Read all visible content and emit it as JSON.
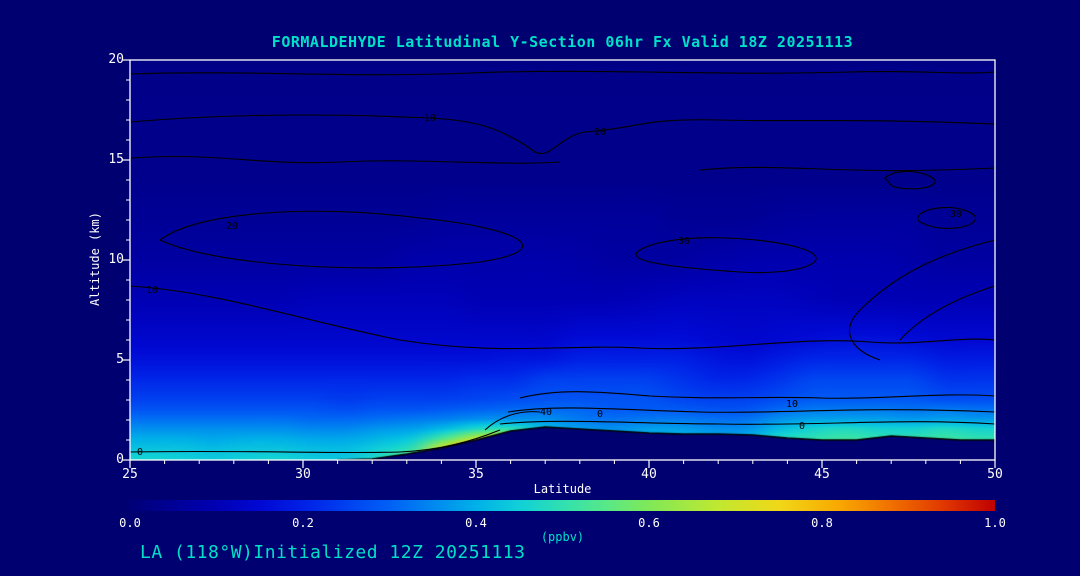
{
  "page": {
    "background": "#000070",
    "title": "FORMALDEHYDE Latitudinal Y-Section 06hr  Fx Valid 18Z 20251113",
    "accent_color": "#00e0c8",
    "footer": "LA (118°W)Initialized 12Z 20251113"
  },
  "plot": {
    "xlabel": "Latitude",
    "ylabel": "Altitude (km)",
    "x_ticks": [
      "25",
      "30",
      "35",
      "40",
      "45",
      "50"
    ],
    "y_ticks": [
      "0",
      "5",
      "10",
      "15",
      "20"
    ],
    "frame_color": "#ffffff",
    "contour_line_color": "#000000",
    "contour_labels": [
      "10",
      "20",
      "20",
      "30",
      "10",
      "30",
      "10",
      "40",
      "0",
      "0",
      "0"
    ]
  },
  "colorbar": {
    "ticks": [
      "0.0",
      "0.2",
      "0.4",
      "0.6",
      "0.8",
      "1.0"
    ],
    "label": "(ppbv)",
    "stops": [
      {
        "v": 0.0,
        "c": "#000078"
      },
      {
        "v": 0.05,
        "c": "#000096"
      },
      {
        "v": 0.1,
        "c": "#0000b4"
      },
      {
        "v": 0.15,
        "c": "#0008d2"
      },
      {
        "v": 0.2,
        "c": "#0020e6"
      },
      {
        "v": 0.25,
        "c": "#0040f0"
      },
      {
        "v": 0.3,
        "c": "#0060f5"
      },
      {
        "v": 0.35,
        "c": "#0088f0"
      },
      {
        "v": 0.4,
        "c": "#00b0e8"
      },
      {
        "v": 0.45,
        "c": "#10d0d8"
      },
      {
        "v": 0.5,
        "c": "#30e0b0"
      },
      {
        "v": 0.55,
        "c": "#58e888"
      },
      {
        "v": 0.6,
        "c": "#80e858"
      },
      {
        "v": 0.68,
        "c": "#c0e830"
      },
      {
        "v": 0.75,
        "c": "#f0d818"
      },
      {
        "v": 0.82,
        "c": "#f8a800"
      },
      {
        "v": 0.88,
        "c": "#f07000"
      },
      {
        "v": 0.94,
        "c": "#e03800"
      },
      {
        "v": 1.0,
        "c": "#c00000"
      }
    ]
  },
  "chart_data": {
    "type": "heatmap",
    "title": "FORMALDEHYDE Latitudinal Y-Section 06hr  Fx Valid 18Z 20251113",
    "xlabel": "Latitude",
    "ylabel": "Altitude (km)",
    "x_range": [
      25,
      50
    ],
    "y_range": [
      0,
      20
    ],
    "colorbar_range": [
      0.0,
      1.0
    ],
    "colorbar_units": "ppbv",
    "contour_levels": [
      0,
      10,
      20,
      30,
      40
    ],
    "lats": [
      25,
      26,
      27,
      28,
      29,
      30,
      31,
      32,
      33,
      34,
      35,
      36,
      37,
      38,
      39,
      40,
      41,
      42,
      43,
      44,
      45,
      46,
      47,
      48,
      49,
      50
    ],
    "altitudes_km": [
      0,
      0.5,
      1,
      1.5,
      2,
      2.5,
      3,
      4,
      5,
      6,
      8,
      10,
      12,
      14,
      16,
      18,
      20
    ],
    "values_ppbv": [
      [
        0.46,
        0.45,
        0.44,
        0.45,
        0.46,
        0.44,
        0.43,
        0.48,
        0.6,
        0.88,
        0.97,
        0.98,
        0.5,
        0.45,
        0.45,
        0.45,
        0.45,
        0.45,
        0.45,
        0.5,
        0.5,
        0.5,
        0.5,
        0.5,
        0.5,
        0.5
      ],
      [
        0.43,
        0.43,
        0.42,
        0.43,
        0.43,
        0.42,
        0.42,
        0.45,
        0.5,
        0.75,
        0.92,
        0.9,
        0.5,
        0.45,
        0.43,
        0.43,
        0.43,
        0.42,
        0.42,
        0.48,
        0.5,
        0.5,
        0.5,
        0.48,
        0.5,
        0.48
      ],
      [
        0.4,
        0.4,
        0.39,
        0.4,
        0.4,
        0.39,
        0.39,
        0.41,
        0.44,
        0.55,
        0.7,
        0.75,
        0.5,
        0.42,
        0.4,
        0.42,
        0.42,
        0.4,
        0.4,
        0.48,
        0.5,
        0.52,
        0.5,
        0.5,
        0.52,
        0.5
      ],
      [
        0.36,
        0.36,
        0.36,
        0.36,
        0.36,
        0.35,
        0.35,
        0.37,
        0.38,
        0.42,
        0.48,
        0.5,
        0.42,
        0.38,
        0.36,
        0.38,
        0.38,
        0.36,
        0.36,
        0.42,
        0.46,
        0.48,
        0.46,
        0.46,
        0.48,
        0.46
      ],
      [
        0.32,
        0.32,
        0.32,
        0.32,
        0.32,
        0.31,
        0.31,
        0.32,
        0.33,
        0.34,
        0.36,
        0.36,
        0.36,
        0.33,
        0.32,
        0.33,
        0.33,
        0.32,
        0.32,
        0.36,
        0.38,
        0.38,
        0.38,
        0.37,
        0.38,
        0.37
      ],
      [
        0.28,
        0.28,
        0.28,
        0.28,
        0.28,
        0.28,
        0.27,
        0.28,
        0.28,
        0.29,
        0.3,
        0.31,
        0.31,
        0.31,
        0.29,
        0.29,
        0.29,
        0.28,
        0.28,
        0.31,
        0.33,
        0.33,
        0.33,
        0.32,
        0.33,
        0.32
      ],
      [
        0.25,
        0.25,
        0.25,
        0.25,
        0.25,
        0.25,
        0.24,
        0.25,
        0.25,
        0.25,
        0.26,
        0.27,
        0.28,
        0.28,
        0.28,
        0.28,
        0.26,
        0.25,
        0.25,
        0.27,
        0.29,
        0.29,
        0.29,
        0.29,
        0.27,
        0.27
      ],
      [
        0.21,
        0.21,
        0.21,
        0.21,
        0.21,
        0.21,
        0.21,
        0.21,
        0.21,
        0.21,
        0.22,
        0.22,
        0.25,
        0.25,
        0.25,
        0.25,
        0.23,
        0.21,
        0.21,
        0.23,
        0.26,
        0.26,
        0.26,
        0.26,
        0.23,
        0.23
      ],
      [
        0.17,
        0.17,
        0.17,
        0.17,
        0.17,
        0.17,
        0.17,
        0.17,
        0.17,
        0.17,
        0.17,
        0.18,
        0.18,
        0.2,
        0.2,
        0.2,
        0.2,
        0.18,
        0.17,
        0.19,
        0.21,
        0.21,
        0.21,
        0.21,
        0.19,
        0.19
      ],
      [
        0.14,
        0.14,
        0.14,
        0.14,
        0.14,
        0.14,
        0.14,
        0.14,
        0.14,
        0.14,
        0.14,
        0.14,
        0.14,
        0.16,
        0.16,
        0.16,
        0.16,
        0.15,
        0.14,
        0.15,
        0.16,
        0.17,
        0.17,
        0.16,
        0.15,
        0.15
      ],
      [
        0.1,
        0.1,
        0.1,
        0.1,
        0.1,
        0.11,
        0.11,
        0.11,
        0.11,
        0.11,
        0.1,
        0.1,
        0.1,
        0.1,
        0.1,
        0.11,
        0.12,
        0.12,
        0.12,
        0.12,
        0.11,
        0.1,
        0.1,
        0.1,
        0.1,
        0.1
      ],
      [
        0.07,
        0.07,
        0.07,
        0.07,
        0.07,
        0.07,
        0.07,
        0.07,
        0.085,
        0.085,
        0.085,
        0.085,
        0.085,
        0.08,
        0.07,
        0.07,
        0.07,
        0.08,
        0.09,
        0.09,
        0.09,
        0.09,
        0.09,
        0.08,
        0.07,
        0.07
      ],
      [
        0.05,
        0.05,
        0.05,
        0.05,
        0.05,
        0.05,
        0.05,
        0.05,
        0.05,
        0.06,
        0.06,
        0.06,
        0.06,
        0.06,
        0.06,
        0.06,
        0.05,
        0.05,
        0.05,
        0.06,
        0.065,
        0.065,
        0.065,
        0.065,
        0.05,
        0.05
      ],
      [
        0.035,
        0.035,
        0.035,
        0.035,
        0.035,
        0.035,
        0.035,
        0.035,
        0.035,
        0.035,
        0.035,
        0.035,
        0.035,
        0.035,
        0.035,
        0.035,
        0.035,
        0.035,
        0.035,
        0.035,
        0.035,
        0.035,
        0.035,
        0.035,
        0.035,
        0.035
      ],
      [
        0.03,
        0.03,
        0.03,
        0.03,
        0.03,
        0.03,
        0.03,
        0.03,
        0.03,
        0.03,
        0.03,
        0.03,
        0.03,
        0.03,
        0.03,
        0.03,
        0.03,
        0.03,
        0.03,
        0.03,
        0.03,
        0.03,
        0.03,
        0.03,
        0.03,
        0.03
      ],
      [
        0.03,
        0.03,
        0.03,
        0.03,
        0.03,
        0.03,
        0.03,
        0.03,
        0.03,
        0.03,
        0.03,
        0.03,
        0.03,
        0.03,
        0.03,
        0.03,
        0.03,
        0.03,
        0.03,
        0.03,
        0.03,
        0.03,
        0.03,
        0.03,
        0.03,
        0.03
      ],
      [
        0.025,
        0.025,
        0.025,
        0.025,
        0.025,
        0.025,
        0.025,
        0.025,
        0.025,
        0.025,
        0.025,
        0.025,
        0.025,
        0.025,
        0.025,
        0.025,
        0.025,
        0.025,
        0.025,
        0.025,
        0.025,
        0.025,
        0.025,
        0.025,
        0.025,
        0.025
      ]
    ],
    "terrain_mask_top_km": [
      0,
      0,
      0,
      0,
      0,
      0,
      0,
      0.05,
      0.3,
      0.6,
      1.0,
      1.45,
      1.65,
      1.55,
      1.45,
      1.35,
      1.3,
      1.3,
      1.25,
      1.1,
      1.0,
      1.0,
      1.2,
      1.1,
      1.0,
      1.0
    ]
  }
}
